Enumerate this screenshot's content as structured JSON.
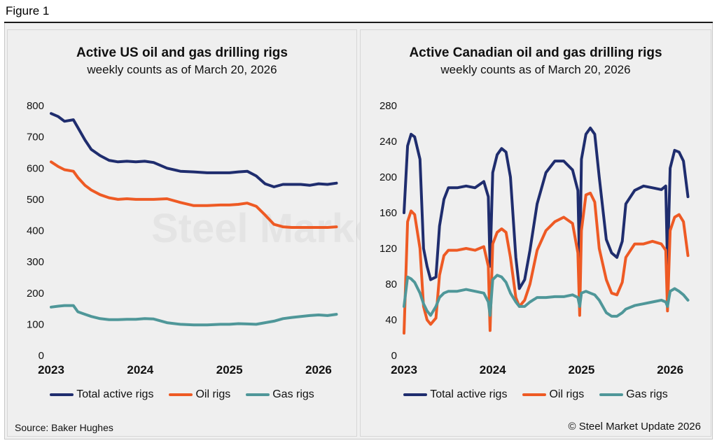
{
  "figure_label": "Figure 1",
  "source": "Source: Baker Hughes",
  "copyright": "© Steel Market Update 2026",
  "watermark": "Steel Market Update",
  "colors": {
    "total": "#1f2d6e",
    "oil": "#ee5a24",
    "gas": "#4f9799"
  },
  "chart_data": [
    {
      "type": "line",
      "title": "Active US oil and gas drilling rigs",
      "subtitle": "weekly counts as of March 20, 2026",
      "ylim": [
        0,
        800
      ],
      "yticks": [
        "800",
        "700",
        "600",
        "500",
        "400",
        "300",
        "200",
        "100",
        "0"
      ],
      "xlim": [
        2023.0,
        2026.22
      ],
      "xticks": [
        "2023",
        "2024",
        "2025",
        "2026"
      ],
      "legend": [
        "Total active rigs",
        "Oil rigs",
        "Gas rigs"
      ],
      "series": [
        {
          "name": "Total active rigs",
          "color_key": "total",
          "x": [
            2023.0,
            2023.08,
            2023.15,
            2023.25,
            2023.3,
            2023.38,
            2023.45,
            2023.55,
            2023.65,
            2023.75,
            2023.85,
            2023.95,
            2024.05,
            2024.15,
            2024.3,
            2024.45,
            2024.6,
            2024.75,
            2024.9,
            2025.0,
            2025.1,
            2025.2,
            2025.3,
            2025.4,
            2025.5,
            2025.6,
            2025.7,
            2025.8,
            2025.9,
            2026.0,
            2026.1,
            2026.2
          ],
          "values": [
            775,
            765,
            750,
            755,
            730,
            690,
            660,
            640,
            625,
            620,
            622,
            620,
            622,
            618,
            600,
            590,
            588,
            585,
            585,
            585,
            588,
            590,
            575,
            550,
            540,
            548,
            548,
            548,
            545,
            550,
            548,
            552
          ]
        },
        {
          "name": "Oil rigs",
          "color_key": "oil",
          "x": [
            2023.0,
            2023.08,
            2023.15,
            2023.25,
            2023.3,
            2023.38,
            2023.45,
            2023.55,
            2023.65,
            2023.75,
            2023.85,
            2023.95,
            2024.05,
            2024.15,
            2024.3,
            2024.45,
            2024.6,
            2024.75,
            2024.9,
            2025.0,
            2025.1,
            2025.2,
            2025.3,
            2025.4,
            2025.5,
            2025.6,
            2025.7,
            2025.8,
            2025.9,
            2026.0,
            2026.1,
            2026.2
          ],
          "values": [
            620,
            605,
            595,
            590,
            570,
            545,
            530,
            515,
            505,
            500,
            502,
            500,
            500,
            500,
            502,
            490,
            480,
            480,
            482,
            482,
            484,
            488,
            478,
            450,
            420,
            412,
            410,
            410,
            410,
            410,
            410,
            412
          ]
        },
        {
          "name": "Gas rigs",
          "color_key": "gas",
          "x": [
            2023.0,
            2023.08,
            2023.15,
            2023.25,
            2023.3,
            2023.38,
            2023.45,
            2023.55,
            2023.65,
            2023.75,
            2023.85,
            2023.95,
            2024.05,
            2024.15,
            2024.3,
            2024.45,
            2024.6,
            2024.75,
            2024.9,
            2025.0,
            2025.1,
            2025.2,
            2025.3,
            2025.4,
            2025.5,
            2025.6,
            2025.7,
            2025.8,
            2025.9,
            2026.0,
            2026.1,
            2026.2
          ],
          "values": [
            155,
            158,
            160,
            160,
            140,
            132,
            125,
            118,
            115,
            115,
            116,
            116,
            118,
            117,
            105,
            100,
            98,
            98,
            100,
            100,
            102,
            101,
            100,
            105,
            110,
            118,
            122,
            125,
            128,
            130,
            128,
            132
          ]
        }
      ]
    },
    {
      "type": "line",
      "title": "Active Canadian oil and gas drilling rigs",
      "subtitle": "weekly counts as of March 20, 2026",
      "ylim": [
        0,
        280
      ],
      "yticks": [
        "280",
        "240",
        "200",
        "160",
        "120",
        "80",
        "40",
        "0"
      ],
      "xlim": [
        2023.0,
        2026.22
      ],
      "xticks": [
        "2023",
        "2024",
        "2025",
        "2026"
      ],
      "legend": [
        "Total active rigs",
        "Oil rigs",
        "Gas rigs"
      ],
      "series": [
        {
          "name": "Total active rigs",
          "color_key": "total",
          "x": [
            2023.0,
            2023.04,
            2023.08,
            2023.12,
            2023.18,
            2023.22,
            2023.26,
            2023.3,
            2023.36,
            2023.4,
            2023.45,
            2023.5,
            2023.6,
            2023.7,
            2023.8,
            2023.9,
            2023.95,
            2023.97,
            2024.0,
            2024.05,
            2024.1,
            2024.15,
            2024.2,
            2024.26,
            2024.3,
            2024.36,
            2024.42,
            2024.5,
            2024.6,
            2024.7,
            2024.8,
            2024.9,
            2024.96,
            2024.98,
            2025.0,
            2025.05,
            2025.1,
            2025.15,
            2025.2,
            2025.28,
            2025.34,
            2025.4,
            2025.46,
            2025.5,
            2025.6,
            2025.7,
            2025.8,
            2025.9,
            2025.95,
            2025.97,
            2026.0,
            2026.05,
            2026.1,
            2026.15,
            2026.2
          ],
          "values": [
            160,
            235,
            248,
            245,
            220,
            120,
            100,
            85,
            88,
            145,
            175,
            188,
            188,
            190,
            188,
            195,
            178,
            100,
            205,
            225,
            232,
            228,
            200,
            110,
            75,
            85,
            118,
            170,
            205,
            218,
            218,
            208,
            185,
            95,
            220,
            248,
            255,
            248,
            200,
            130,
            115,
            110,
            128,
            170,
            185,
            190,
            188,
            186,
            190,
            100,
            210,
            230,
            228,
            218,
            178
          ]
        },
        {
          "name": "Oil rigs",
          "color_key": "oil",
          "x": [
            2023.0,
            2023.04,
            2023.08,
            2023.12,
            2023.18,
            2023.22,
            2023.26,
            2023.3,
            2023.36,
            2023.4,
            2023.45,
            2023.5,
            2023.6,
            2023.7,
            2023.8,
            2023.9,
            2023.95,
            2023.97,
            2024.0,
            2024.05,
            2024.1,
            2024.15,
            2024.2,
            2024.26,
            2024.3,
            2024.36,
            2024.42,
            2024.5,
            2024.6,
            2024.7,
            2024.8,
            2024.9,
            2024.96,
            2024.98,
            2025.0,
            2025.05,
            2025.1,
            2025.15,
            2025.2,
            2025.28,
            2025.34,
            2025.4,
            2025.46,
            2025.5,
            2025.6,
            2025.7,
            2025.8,
            2025.9,
            2025.95,
            2025.97,
            2026.0,
            2026.05,
            2026.1,
            2026.15,
            2026.2
          ],
          "values": [
            25,
            150,
            162,
            158,
            120,
            55,
            40,
            35,
            42,
            90,
            112,
            118,
            118,
            120,
            118,
            122,
            100,
            28,
            125,
            138,
            142,
            138,
            110,
            65,
            55,
            62,
            80,
            118,
            140,
            150,
            155,
            148,
            115,
            45,
            140,
            180,
            182,
            172,
            120,
            85,
            70,
            68,
            82,
            110,
            125,
            125,
            128,
            125,
            118,
            50,
            140,
            155,
            158,
            150,
            112
          ]
        },
        {
          "name": "Gas rigs",
          "color_key": "gas",
          "x": [
            2023.0,
            2023.04,
            2023.08,
            2023.12,
            2023.18,
            2023.22,
            2023.26,
            2023.3,
            2023.36,
            2023.4,
            2023.45,
            2023.5,
            2023.6,
            2023.7,
            2023.8,
            2023.9,
            2023.95,
            2023.97,
            2024.0,
            2024.05,
            2024.1,
            2024.15,
            2024.2,
            2024.26,
            2024.3,
            2024.36,
            2024.42,
            2024.5,
            2024.6,
            2024.7,
            2024.8,
            2024.9,
            2024.96,
            2024.98,
            2025.0,
            2025.05,
            2025.1,
            2025.15,
            2025.2,
            2025.28,
            2025.34,
            2025.4,
            2025.46,
            2025.5,
            2025.6,
            2025.7,
            2025.8,
            2025.9,
            2025.95,
            2025.97,
            2026.0,
            2026.05,
            2026.1,
            2026.15,
            2026.2
          ],
          "values": [
            55,
            88,
            86,
            82,
            70,
            58,
            50,
            45,
            55,
            65,
            70,
            72,
            72,
            74,
            72,
            70,
            60,
            45,
            85,
            90,
            88,
            82,
            70,
            60,
            55,
            55,
            60,
            65,
            65,
            66,
            66,
            68,
            65,
            55,
            70,
            72,
            70,
            68,
            62,
            48,
            44,
            44,
            48,
            52,
            56,
            58,
            60,
            62,
            60,
            55,
            72,
            75,
            72,
            68,
            62
          ]
        }
      ]
    }
  ]
}
